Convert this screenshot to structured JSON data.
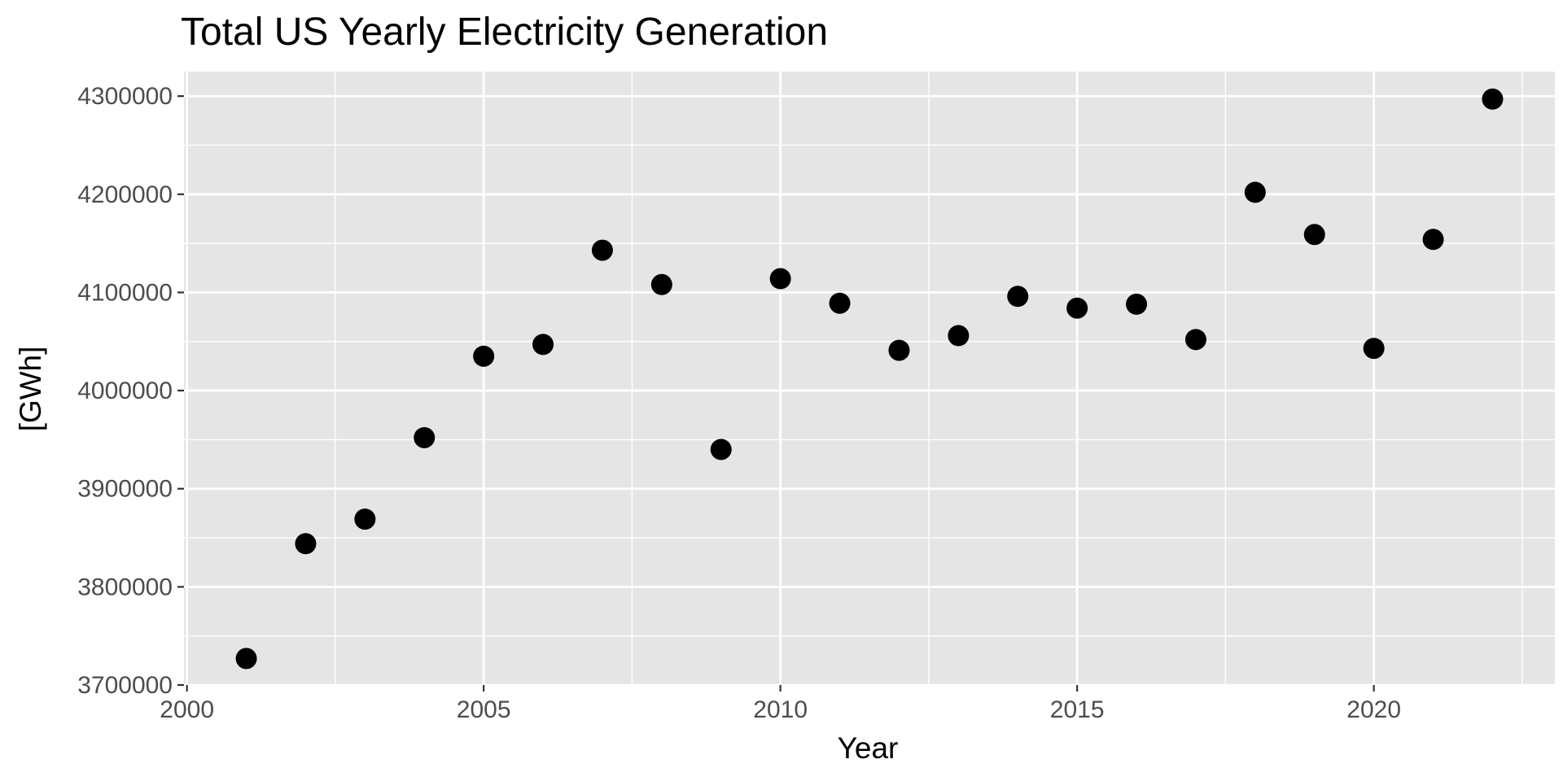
{
  "chart_data": {
    "type": "scatter",
    "title": "Total US Yearly Electricity Generation",
    "xlabel": "Year",
    "ylabel": "[GWh]",
    "xlim": [
      1999.95,
      2023.05
    ],
    "ylim": [
      3700000,
      4325000
    ],
    "x_ticks": [
      2000,
      2005,
      2010,
      2015,
      2020
    ],
    "y_ticks": [
      3700000,
      3800000,
      3900000,
      4000000,
      4100000,
      4200000,
      4300000
    ],
    "x_tick_labels": [
      "2000",
      "2005",
      "2010",
      "2015",
      "2020"
    ],
    "y_tick_labels": [
      "3700000",
      "3800000",
      "3900000",
      "4000000",
      "4100000",
      "4200000",
      "4300000"
    ],
    "grid": true,
    "legend": "none",
    "colors": {
      "panel_background": "#e5e5e5",
      "grid": "#ffffff",
      "point": "#000000",
      "tick_text": "#4d4d4d",
      "tick_mark": "#333333"
    },
    "series": [
      {
        "x": [
          2001,
          2002,
          2003,
          2004,
          2005,
          2006,
          2007,
          2008,
          2009,
          2010,
          2011,
          2012,
          2013,
          2014,
          2015,
          2016,
          2017,
          2018,
          2019,
          2020,
          2021,
          2022
        ],
        "y": [
          3727000,
          3844000,
          3869000,
          3952000,
          4035000,
          4047000,
          4143000,
          4108000,
          3940000,
          4114000,
          4089000,
          4041000,
          4056000,
          4096000,
          4084000,
          4088000,
          4052000,
          4202000,
          4159000,
          4043000,
          4154000,
          4297000
        ]
      }
    ]
  }
}
